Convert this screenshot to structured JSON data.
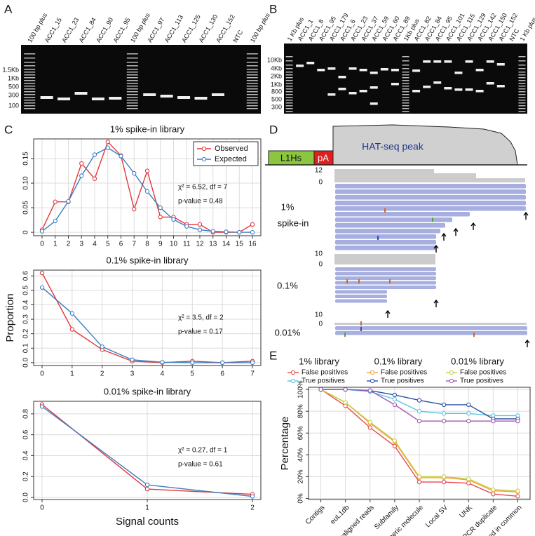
{
  "panel_labels": [
    "A",
    "B",
    "C",
    "D",
    "E"
  ],
  "gel_a": {
    "lanes": [
      "100 bp plus",
      "ACC1_15",
      "ACC1_23",
      "ACC1_84",
      "ACC1_90",
      "ACC1_95",
      "100 bp plus",
      "ACC1_97",
      "ACC1_113",
      "ACC1_125",
      "ACC1_130",
      "ACC1_152",
      "NTC",
      "100 bp plus"
    ],
    "size_markers": [
      "1.5Kb",
      "1Kb",
      "500",
      "300",
      "100"
    ]
  },
  "gel_b": {
    "lanes": [
      "1 Kb plus",
      "ACC1_1",
      "ACC1_8",
      "ACC1_95",
      "ACC1_179",
      "ACC1_6",
      "ACC1_23",
      "ACC1_37",
      "ACC1_59",
      "ACC1_60",
      "ACC1_89",
      "1Kb plus",
      "ACC1_82",
      "ACC1_84",
      "ACC1_95",
      "ACC1_101",
      "ACC1_115",
      "ACC1_129",
      "ACC1_142",
      "ACC1_150",
      "ACC1_152",
      "NTC",
      "1 Kb plus"
    ],
    "size_markers": [
      "10Kb",
      "4Kb",
      "2Kb",
      "1Kb",
      "800",
      "500",
      "300"
    ]
  },
  "panel_d": {
    "element": "L1Hs",
    "tail": "pA",
    "peak": "HAT-seq peak",
    "tracks": [
      {
        "label": "1%",
        "sublabel": "spike-in",
        "axis": [
          12,
          0
        ]
      },
      {
        "label": "0.1%",
        "axis": [
          10,
          0
        ]
      },
      {
        "label": "0.01%",
        "axis": [
          10,
          0
        ]
      }
    ]
  },
  "chart_data": [
    {
      "type": "line",
      "title": "1% spike-in library",
      "x": [
        0,
        1,
        2,
        3,
        4,
        5,
        6,
        7,
        8,
        9,
        10,
        11,
        12,
        13,
        14,
        15,
        16
      ],
      "xlim": [
        -0.64,
        16.64
      ],
      "xticks": [
        0,
        1,
        2,
        3,
        4,
        5,
        6,
        7,
        8,
        9,
        10,
        11,
        12,
        13,
        14,
        15,
        16
      ],
      "ylim": [
        -0.007,
        0.19
      ],
      "yticks": [
        0,
        0.05,
        {
          "value": 0.1,
          "label": "0.10"
        },
        0.15
      ],
      "grid": true,
      "legend": "top-right",
      "series": [
        {
          "name": "Observed",
          "color": "#e2363c",
          "values": [
            0.005,
            0.062,
            0.062,
            0.14,
            0.109,
            0.184,
            0.156,
            0.047,
            0.125,
            0.031,
            0.031,
            0.016,
            0.016,
            0,
            0,
            0,
            0.016
          ]
        },
        {
          "name": "Expected",
          "color": "#3b7fc1",
          "values": [
            0.002,
            0.023,
            0.063,
            0.115,
            0.158,
            0.172,
            0.155,
            0.12,
            0.083,
            0.05,
            0.026,
            0.012,
            0.005,
            0.002,
            0.001,
            0,
            0
          ]
        }
      ],
      "annotations": [
        "χ² = 6.52, df = 7",
        "p-value = 0.48"
      ]
    },
    {
      "type": "line",
      "title": "0.1% spike-in library",
      "y_label": "Proportion",
      "x": [
        0,
        1,
        2,
        3,
        4,
        5,
        6,
        7
      ],
      "xlim": [
        -0.28,
        7.28
      ],
      "xticks": [
        0,
        1,
        2,
        3,
        4,
        5,
        6,
        7
      ],
      "ylim": [
        -0.02,
        0.64
      ],
      "yticks": [
        {
          "value": 0,
          "label": "0.0"
        },
        0.1,
        0.2,
        0.3,
        0.4,
        0.5,
        0.6
      ],
      "grid": true,
      "series": [
        {
          "name": "Observed",
          "color": "#e2363c",
          "values": [
            0.62,
            0.23,
            0.09,
            0.01,
            0,
            0.01,
            0,
            0.01
          ]
        },
        {
          "name": "Expected",
          "color": "#3b7fc1",
          "values": [
            0.52,
            0.34,
            0.11,
            0.02,
            0.003,
            0,
            0,
            0
          ]
        }
      ],
      "annotations": [
        "χ² = 3.5, df = 2",
        "p-value = 0.17"
      ]
    },
    {
      "type": "line",
      "title": "0.01% spike-in library",
      "x_label": "Signal counts",
      "x": [
        0,
        1,
        2
      ],
      "xlim": [
        -0.08,
        2.08
      ],
      "xticks": [
        0,
        1,
        2
      ],
      "ylim": [
        -0.02,
        0.92
      ],
      "yticks": [
        {
          "value": 0,
          "label": "0.0"
        },
        0.2,
        0.4,
        0.6,
        0.8
      ],
      "grid": true,
      "series": [
        {
          "name": "Observed",
          "color": "#e2363c",
          "values": [
            0.89,
            0.08,
            0.03
          ]
        },
        {
          "name": "Expected",
          "color": "#3b7fc1",
          "values": [
            0.87,
            0.12,
            0.01
          ]
        }
      ],
      "annotations": [
        "χ² = 0.27, df = 1",
        "p-value = 0.61"
      ]
    },
    {
      "type": "line",
      "y_label": "Percentage",
      "categories": [
        "Contigs",
        "euL1db",
        "Misaligned reads",
        "Subfamily",
        "Chimeric molecule",
        "Local SV",
        "UNK",
        "PCR duplicate",
        "Observed in common"
      ],
      "ylim": [
        -1,
        102
      ],
      "yticks": [
        {
          "value": 0,
          "label": "0%"
        },
        {
          "value": 20,
          "label": "20%"
        },
        {
          "value": 40,
          "label": "40%"
        },
        {
          "value": 60,
          "label": "60%"
        },
        {
          "value": 80,
          "label": "80%"
        },
        {
          "value": 100,
          "label": "100%"
        }
      ],
      "grid": true,
      "series_groups": [
        {
          "name": "1% library",
          "series": [
            {
              "name": "False positives",
              "color": "#e8474a",
              "values": [
                100,
                85,
                65,
                48,
                15,
                15,
                14,
                4,
                2
              ]
            },
            {
              "name": "True positives",
              "color": "#56c3e6",
              "values": [
                100,
                100,
                98,
                91,
                80,
                78,
                78,
                76,
                76
              ]
            }
          ]
        },
        {
          "name": "0.1% library",
          "series": [
            {
              "name": "False positives",
              "color": "#f4a04a",
              "values": [
                100,
                88,
                69,
                52,
                19,
                19,
                17,
                7,
                6
              ]
            },
            {
              "name": "True positives",
              "color": "#2d4f9e",
              "values": [
                100,
                100,
                99,
                95,
                90,
                86,
                86,
                73,
                73
              ]
            }
          ]
        },
        {
          "name": "0.01% library",
          "series": [
            {
              "name": "False positives",
              "color": "#c5cf3c",
              "values": [
                100,
                88,
                70,
                53,
                20,
                20,
                18,
                8,
                7
              ]
            },
            {
              "name": "True positives",
              "color": "#a057b2",
              "values": [
                100,
                100,
                99,
                86,
                71,
                71,
                71,
                71,
                71
              ]
            }
          ]
        }
      ]
    }
  ]
}
